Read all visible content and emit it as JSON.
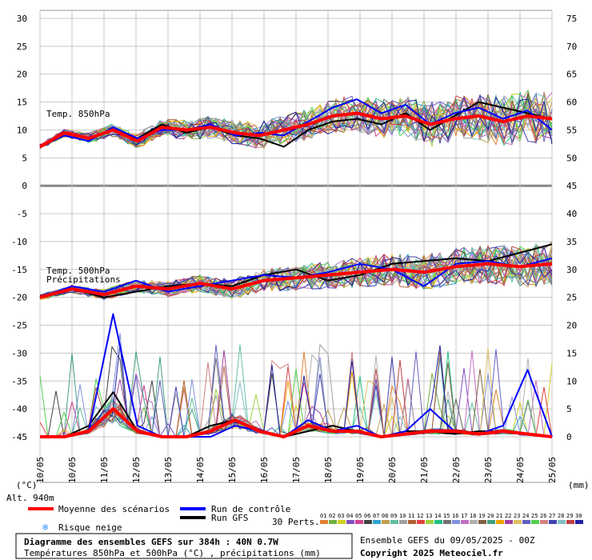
{
  "chart_data": {
    "type": "line",
    "title": "Diagramme des ensembles GEFS sur 384h : 40N 0.7W",
    "subtitle": "Températures 850hPa et 500hPa (°C) , précipitations (mm)",
    "run_info": "Ensemble GEFS du 09/05/2025 - 00Z",
    "copyright": "Copyright 2025 Meteociel.fr",
    "altitude": "Alt. 940m",
    "unit_left": "(°C)",
    "unit_right": "(mm)",
    "left_ticks": [
      30,
      25,
      20,
      15,
      10,
      5,
      0,
      -5,
      -10,
      -15,
      -20,
      -25,
      -30,
      -35,
      -40,
      -45
    ],
    "right_ticks": [
      75,
      70,
      65,
      60,
      55,
      50,
      45,
      40,
      35,
      30,
      25,
      20,
      15,
      10,
      5,
      0
    ],
    "x_labels": [
      "10/05",
      "10/05",
      "11/05",
      "12/05",
      "13/05",
      "14/05",
      "15/05",
      "16/05",
      "17/05",
      "18/05",
      "19/05",
      "20/05",
      "21/05",
      "22/05",
      "23/05",
      "24/05",
      "25/05"
    ],
    "panel_labels": {
      "t850": "Temp. 850hPa",
      "t500": "Temp. 500hPa",
      "precip": "Précipitations"
    },
    "legend": {
      "mean": "Moyenne des scénarios",
      "control": "Run de contrôle",
      "gfs": "Run GFS",
      "snow": "Risque neige",
      "perts": "30 Perts."
    },
    "pert_labels": [
      "01",
      "02",
      "03",
      "04",
      "05",
      "06",
      "07",
      "08",
      "09",
      "10",
      "11",
      "12",
      "13",
      "14",
      "15",
      "16",
      "17",
      "18",
      "19",
      "20",
      "21",
      "22",
      "23",
      "24",
      "25",
      "26",
      "27",
      "28",
      "29",
      "30"
    ],
    "pert_colors": [
      "#e08030",
      "#70b040",
      "#d0d020",
      "#8050c0",
      "#d04090",
      "#404040",
      "#30a0d0",
      "#c0a050",
      "#60c0a0",
      "#a0a0a0",
      "#b06030",
      "#e04040",
      "#a0d040",
      "#20c080",
      "#707070",
      "#8090e0",
      "#c070c0",
      "#b0b0b0",
      "#806040",
      "#40a080",
      "#f0a000",
      "#a040a0",
      "#e0c060",
      "#6060c0",
      "#50d050",
      "#d08080",
      "#4040b0",
      "#80c0c0",
      "#c04040",
      "#2020a0"
    ],
    "series_colors": {
      "mean": "#ff0000",
      "control": "#0000ff",
      "gfs": "#000000"
    },
    "x_days": [
      10,
      11,
      12,
      13,
      14,
      15,
      16,
      17,
      18,
      19,
      20,
      21,
      22,
      23,
      24,
      25
    ],
    "mean_t850": [
      7,
      9.5,
      8.5,
      10,
      8,
      10.5,
      10,
      10.5,
      9.5,
      9,
      10,
      11,
      12.5,
      13,
      12,
      12.5,
      11,
      12,
      12.5,
      11.5,
      12.5,
      12
    ],
    "control_t850": [
      7,
      9,
      8,
      10.5,
      8.5,
      10,
      10,
      11,
      9,
      9.5,
      9,
      11.5,
      14,
      15.5,
      13,
      14.5,
      11,
      13,
      14,
      12,
      13.5,
      10
    ],
    "gfs_t850": [
      7,
      9.5,
      8.5,
      10,
      8.5,
      11,
      9.5,
      10.5,
      9,
      8.5,
      7,
      10,
      11.5,
      12,
      11,
      13,
      10,
      12.5,
      15,
      14,
      13,
      12
    ],
    "mean_t500": [
      -20,
      -18.5,
      -19.5,
      -18,
      -18.5,
      -17.5,
      -18.5,
      -17,
      -16.5,
      -16,
      -15.5,
      -15,
      -15.5,
      -14.5,
      -14,
      -14.5,
      -14
    ],
    "control_t500": [
      -20,
      -18,
      -19,
      -17,
      -19,
      -18,
      -17,
      -16,
      -16.5,
      -15.5,
      -14,
      -15,
      -18,
      -14,
      -13.5,
      -14.5,
      -13
    ],
    "gfs_t500": [
      -20,
      -18.5,
      -20,
      -19,
      -18,
      -17.5,
      -18,
      -16,
      -15,
      -17,
      -16,
      -14,
      -13.5,
      -13,
      -13.5,
      -12,
      -10.5
    ],
    "mean_precip": [
      0,
      0,
      1,
      5,
      1,
      0,
      0,
      1,
      3,
      1,
      0,
      2,
      1,
      1,
      0,
      0.5,
      1,
      1,
      0.5,
      1,
      0.5,
      0
    ],
    "control_precip": [
      0,
      0,
      1,
      22,
      2,
      0,
      0,
      0,
      2,
      1,
      0,
      3,
      1,
      2,
      0,
      1,
      5,
      1,
      0.5,
      2,
      12,
      0
    ],
    "gfs_precip": [
      0,
      0,
      2,
      8,
      1,
      0,
      0,
      2,
      3,
      1,
      0,
      1,
      2,
      1,
      0,
      1,
      1,
      0.5,
      1,
      1,
      0.5,
      0
    ]
  }
}
